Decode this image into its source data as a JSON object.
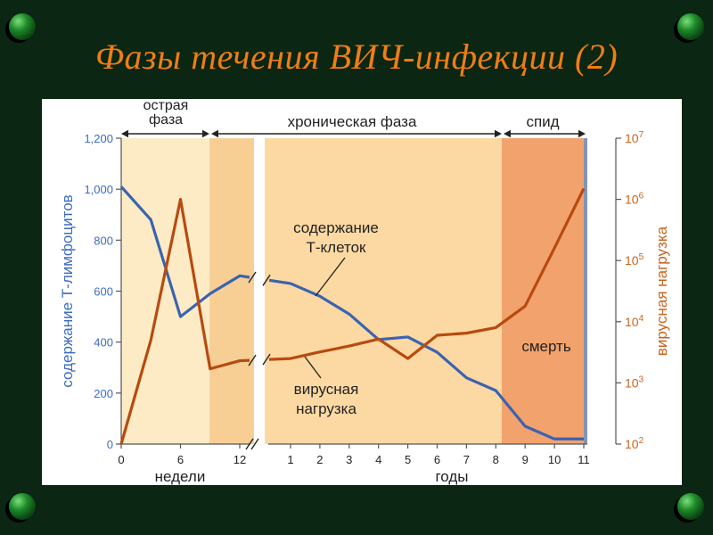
{
  "slide": {
    "title": "Фазы течения ВИЧ-инфекции (2)"
  },
  "chart_data": {
    "type": "line",
    "colors": {
      "t_cells": "#3b63b0",
      "viral_load": "#b84a10",
      "left_axis": "#3d6cc0",
      "right_axis": "#c8641e",
      "axes": "#555555",
      "phase_acute": "#fdebc6",
      "phase_gap_band": "#f7cf95",
      "phase_chronic": "#fcd9a2",
      "phase_aids": "#f2a26c",
      "phase_aids_edge": "#8494b4"
    },
    "phases": {
      "acute": "острая\nфаза",
      "chronic": "хроническая фаза",
      "aids": "спид"
    },
    "y_left": {
      "label": "содержание Т-лимфоцитов",
      "range": [
        0,
        1200
      ],
      "ticks": [
        "0",
        "200",
        "400",
        "600",
        "800",
        "1,000",
        "1,200"
      ]
    },
    "y_right": {
      "label": "вирусная нагрузка",
      "scale": "log",
      "range": [
        100,
        10000000
      ],
      "ticks": [
        {
          "base": "10",
          "exp": "2"
        },
        {
          "base": "10",
          "exp": "3"
        },
        {
          "base": "10",
          "exp": "4"
        },
        {
          "base": "10",
          "exp": "5"
        },
        {
          "base": "10",
          "exp": "6"
        },
        {
          "base": "10",
          "exp": "7"
        }
      ]
    },
    "x_axis": {
      "weeks": {
        "label": "недели",
        "ticks": [
          "0",
          "6",
          "12"
        ],
        "range": [
          0,
          12
        ]
      },
      "years": {
        "label": "годы",
        "ticks": [
          "1",
          "2",
          "3",
          "4",
          "5",
          "6",
          "7",
          "8",
          "9",
          "10",
          "11"
        ],
        "range": [
          1,
          11
        ]
      }
    },
    "series": [
      {
        "key": "t_cells",
        "name": "содержание\nТ-клеток",
        "axis": "left",
        "weeks_points": [
          [
            0,
            1010
          ],
          [
            3,
            880
          ],
          [
            6,
            500
          ],
          [
            9,
            590
          ],
          [
            12,
            660
          ]
        ],
        "years_points": [
          [
            1,
            630
          ],
          [
            2,
            580
          ],
          [
            3,
            510
          ],
          [
            4,
            410
          ],
          [
            5,
            420
          ],
          [
            6,
            360
          ],
          [
            7,
            260
          ],
          [
            8,
            210
          ],
          [
            9,
            70
          ],
          [
            10,
            20
          ],
          [
            11,
            20
          ]
        ]
      },
      {
        "key": "viral_load",
        "name": "вирусная\nнагрузка",
        "axis": "right",
        "weeks_points": [
          [
            0,
            100
          ],
          [
            3,
            5000
          ],
          [
            6,
            1000000
          ],
          [
            9,
            1700
          ],
          [
            12,
            2300
          ]
        ],
        "years_points": [
          [
            1,
            2500
          ],
          [
            2,
            3200
          ],
          [
            3,
            4000
          ],
          [
            4,
            5200
          ],
          [
            5,
            2500
          ],
          [
            6,
            6000
          ],
          [
            7,
            6500
          ],
          [
            8,
            8000
          ],
          [
            9,
            18000
          ],
          [
            10,
            160000
          ],
          [
            11,
            1500000
          ]
        ]
      }
    ],
    "annotations": {
      "death": "смерть"
    }
  }
}
